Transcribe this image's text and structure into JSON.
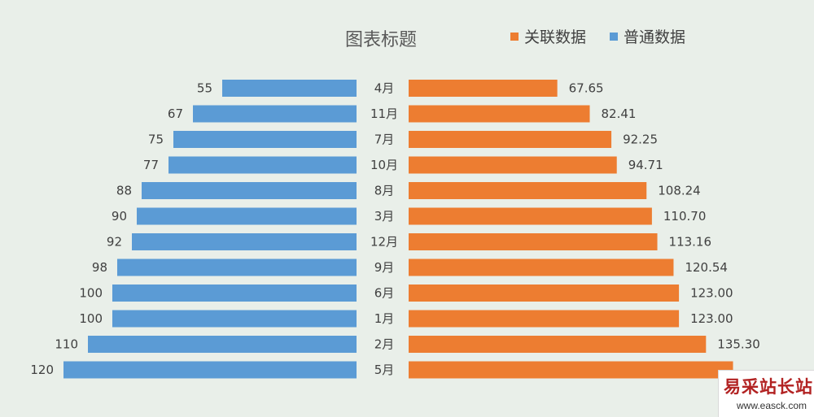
{
  "chart_data": {
    "type": "bar",
    "orientation": "horizontal-butterfly",
    "title": "图表标题",
    "categories": [
      "4月",
      "11月",
      "7月",
      "10月",
      "8月",
      "3月",
      "12月",
      "9月",
      "6月",
      "1月",
      "2月",
      "5月"
    ],
    "series": [
      {
        "name": "普通数据",
        "side": "left",
        "color": "#5b9bd5",
        "values": [
          55,
          67,
          75,
          77,
          88,
          90,
          92,
          98,
          100,
          100,
          110,
          120
        ],
        "labels": [
          "55",
          "67",
          "75",
          "77",
          "88",
          "90",
          "92",
          "98",
          "100",
          "100",
          "110",
          "120"
        ]
      },
      {
        "name": "关联数据",
        "side": "right",
        "color": "#ed7d31",
        "values": [
          67.65,
          82.41,
          92.25,
          94.71,
          108.24,
          110.7,
          113.16,
          120.54,
          123.0,
          123.0,
          135.3,
          147.6
        ],
        "labels": [
          "67.65",
          "82.41",
          "92.25",
          "94.71",
          "108.24",
          "110.70",
          "113.16",
          "120.54",
          "123.00",
          "123.00",
          "135.30",
          ""
        ]
      }
    ],
    "legend": {
      "position": "top-right",
      "order": [
        "关联数据",
        "普通数据"
      ]
    },
    "grid": false
  },
  "watermark": {
    "main": "易采站长站",
    "sub": "www.easck.com"
  }
}
